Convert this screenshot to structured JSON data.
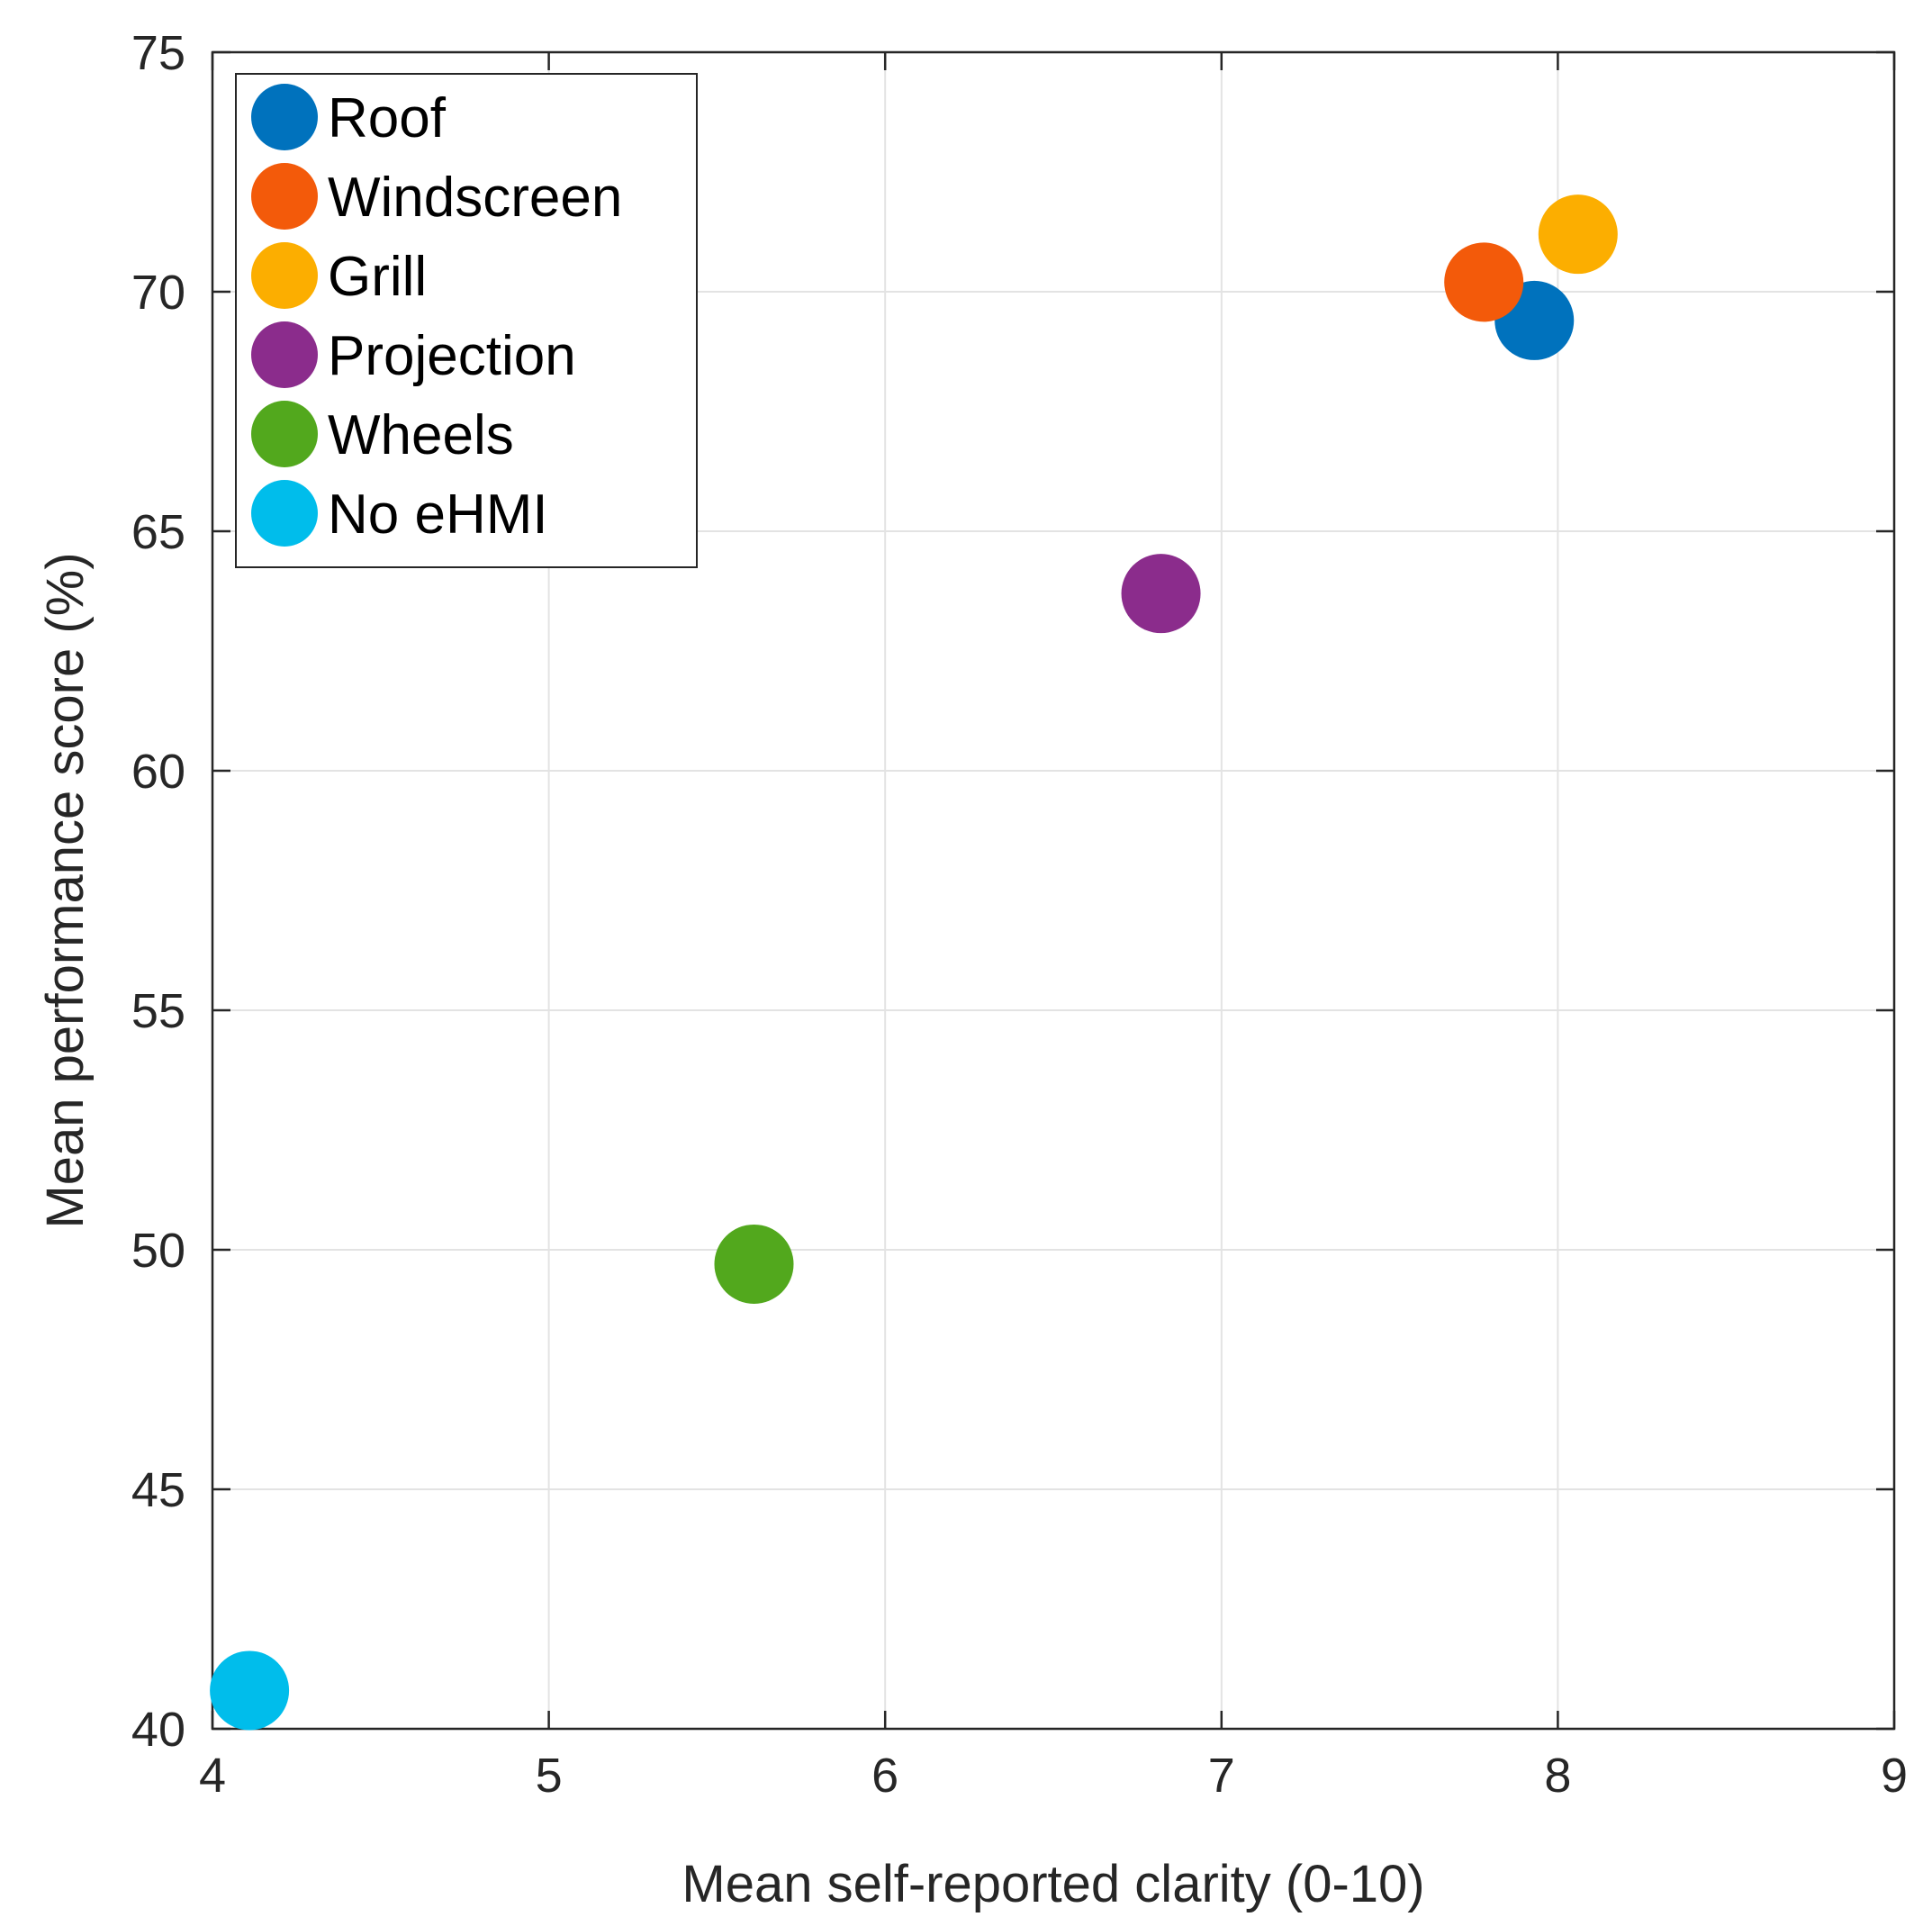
{
  "chart_data": {
    "type": "scatter",
    "title": "",
    "xlabel": "Mean self-reported clarity (0-10)",
    "ylabel": "Mean performance score (%)",
    "xlim": [
      4,
      9
    ],
    "ylim": [
      40,
      75
    ],
    "xticks": [
      4,
      5,
      6,
      7,
      8,
      9
    ],
    "yticks": [
      40,
      45,
      50,
      55,
      60,
      65,
      70,
      75
    ],
    "grid": true,
    "legend_location": "top-left",
    "series": [
      {
        "name": "Roof",
        "color": "#0072BD",
        "x": 7.93,
        "y": 69.4
      },
      {
        "name": "Windscreen",
        "color": "#F35A0A",
        "x": 7.78,
        "y": 70.2
      },
      {
        "name": "Grill",
        "color": "#FCAE00",
        "x": 8.06,
        "y": 71.2
      },
      {
        "name": "Projection",
        "color": "#8B2C8C",
        "x": 6.82,
        "y": 63.7
      },
      {
        "name": "Wheels",
        "color": "#52A81D",
        "x": 5.61,
        "y": 49.7
      },
      {
        "name": "No eHMI",
        "color": "#00BDEB",
        "x": 4.11,
        "y": 40.8
      }
    ]
  }
}
